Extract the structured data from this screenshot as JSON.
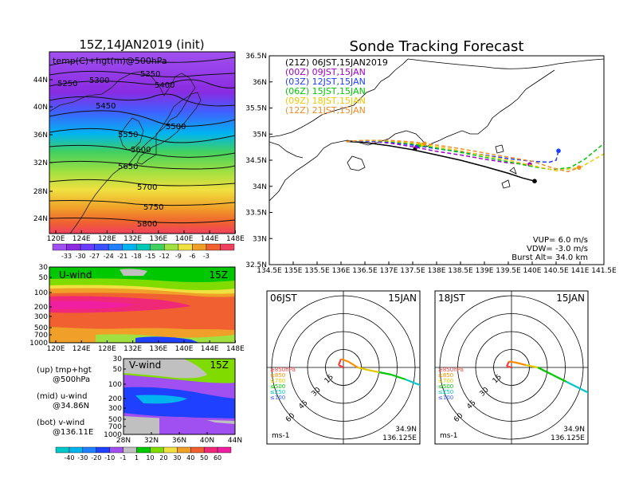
{
  "titles": {
    "left_panel": "15Z,14JAN2019 (init)",
    "right_panel": "Sonde Tracking Forecast"
  },
  "map500": {
    "label": "temp(C)+hgt(m)@500hPa",
    "lat_labels": [
      "44N",
      "40N",
      "36N",
      "32N",
      "28N",
      "24N"
    ],
    "lon_labels": [
      "120E",
      "124E",
      "128E",
      "132E",
      "136E",
      "140E",
      "144E",
      "148E"
    ],
    "contour_labels": [
      "5250",
      "5300",
      "5350",
      "5400",
      "5450",
      "5500",
      "5550",
      "5600",
      "5650",
      "5700",
      "5750",
      "5800"
    ],
    "temp_colorbar": [
      "-33",
      "-30",
      "-27",
      "-24",
      "-21",
      "-18",
      "-15",
      "-12",
      "-9",
      "-6",
      "-3"
    ]
  },
  "uwind": {
    "label": "U-wind",
    "time": "15Z",
    "p_labels": [
      "30",
      "50",
      "100",
      "200",
      "300",
      "500",
      "700",
      "1000"
    ],
    "lon_labels": [
      "120E",
      "124E",
      "128E",
      "132E",
      "136E",
      "140E",
      "144E",
      "148E"
    ]
  },
  "vwind": {
    "label": "V-wind",
    "time": "15Z",
    "p_labels": [
      "30",
      "50",
      "100",
      "200",
      "300",
      "500",
      "700",
      "1000"
    ],
    "lat_labels": [
      "28N",
      "32N",
      "36N",
      "40N",
      "44N"
    ]
  },
  "legend_text": {
    "up_1": "(up) tmp+hgt",
    "up_2": "@500hPa",
    "mid_1": "(mid) u-wind",
    "mid_2": "@34.86N",
    "bot_1": "(bot) v-wind",
    "bot_2": "@136.11E"
  },
  "wind_colorbar": [
    "-40",
    "-30",
    "-20",
    "-10",
    "-1",
    "1",
    "10",
    "20",
    "30",
    "40",
    "50",
    "60"
  ],
  "track": {
    "lat_labels": [
      "36.5N",
      "36N",
      "35.5N",
      "35N",
      "34.5N",
      "34N",
      "33.5N",
      "33N",
      "32.5N"
    ],
    "lon_labels": [
      "134.5E",
      "135E",
      "135.5E",
      "136E",
      "136.5E",
      "137E",
      "137.5E",
      "138E",
      "138.5E",
      "139E",
      "139.5E",
      "140E",
      "140.5E",
      "141E",
      "141.5E"
    ],
    "legend": [
      {
        "text": "(21Z)  06JST,15JAN2019",
        "color": "#000000"
      },
      {
        "text": "(00Z)  09JST,15JAN",
        "color": "#a000c8"
      },
      {
        "text": "(03Z)  12JST,15JAN",
        "color": "#1e3cff"
      },
      {
        "text": "(06Z)  15JST,15JAN",
        "color": "#00c800"
      },
      {
        "text": "(09Z)  18JST,15JAN",
        "color": "#f0c800"
      },
      {
        "text": "(12Z)  21JST,15JAN",
        "color": "#f08c28"
      }
    ],
    "params": [
      "VUP=  6.0  m/s",
      "VDW=  -3.0  m/s",
      "Burst Alt=  34.0  km"
    ],
    "launch": {
      "lon": 136.11,
      "lat": 34.86
    },
    "series": [
      {
        "color": "#000000",
        "dashed": false,
        "points": [
          [
            136.11,
            34.86
          ],
          [
            136.5,
            34.84
          ],
          [
            137.0,
            34.78
          ],
          [
            137.5,
            34.7
          ],
          [
            138.0,
            34.6
          ],
          [
            138.5,
            34.5
          ],
          [
            139.0,
            34.38
          ],
          [
            139.5,
            34.25
          ],
          [
            139.8,
            34.16
          ],
          [
            140.05,
            34.1
          ]
        ],
        "balloon": [
          137.55,
          34.72
        ],
        "end": [
          140.05,
          34.1
        ]
      },
      {
        "color": "#a000c8",
        "dashed": true,
        "points": [
          [
            136.11,
            34.86
          ],
          [
            136.5,
            34.87
          ],
          [
            137.0,
            34.83
          ],
          [
            137.5,
            34.76
          ],
          [
            138.0,
            34.67
          ],
          [
            138.5,
            34.6
          ],
          [
            139.0,
            34.52
          ],
          [
            139.5,
            34.45
          ],
          [
            139.95,
            34.42
          ]
        ],
        "balloon": [
          137.58,
          34.76
        ],
        "end": [
          139.95,
          34.42
        ]
      },
      {
        "color": "#1e3cff",
        "dashed": true,
        "points": [
          [
            136.11,
            34.86
          ],
          [
            136.5,
            34.87
          ],
          [
            137.0,
            34.85
          ],
          [
            137.5,
            34.79
          ],
          [
            138.0,
            34.72
          ],
          [
            138.5,
            34.66
          ],
          [
            139.0,
            34.6
          ],
          [
            139.5,
            34.53
          ],
          [
            140.0,
            34.48
          ],
          [
            140.35,
            34.46
          ],
          [
            140.5,
            34.5
          ],
          [
            140.55,
            34.68
          ]
        ],
        "balloon": [
          137.62,
          34.78
        ],
        "end": [
          140.55,
          34.68
        ]
      },
      {
        "color": "#00c800",
        "dashed": true,
        "points": [
          [
            136.11,
            34.86
          ],
          [
            136.5,
            34.88
          ],
          [
            137.0,
            34.86
          ],
          [
            137.5,
            34.81
          ],
          [
            138.0,
            34.73
          ],
          [
            138.5,
            34.65
          ],
          [
            139.0,
            34.56
          ],
          [
            139.5,
            34.47
          ],
          [
            140.0,
            34.38
          ],
          [
            140.4,
            34.32
          ],
          [
            140.8,
            34.36
          ],
          [
            141.1,
            34.52
          ],
          [
            141.5,
            34.82
          ]
        ],
        "balloon": [
          137.65,
          34.79
        ],
        "end": null
      },
      {
        "color": "#f0c800",
        "dashed": true,
        "points": [
          [
            136.11,
            34.86
          ],
          [
            136.5,
            34.88
          ],
          [
            137.0,
            34.87
          ],
          [
            137.5,
            34.83
          ],
          [
            138.0,
            34.76
          ],
          [
            138.5,
            34.68
          ],
          [
            139.0,
            34.59
          ],
          [
            139.5,
            34.5
          ],
          [
            140.0,
            34.4
          ],
          [
            140.5,
            34.3
          ],
          [
            141.0,
            34.36
          ],
          [
            141.5,
            34.62
          ]
        ],
        "balloon": [
          137.7,
          34.8
        ],
        "end": null
      },
      {
        "color": "#f08c28",
        "dashed": true,
        "points": [
          [
            136.11,
            34.86
          ],
          [
            136.5,
            34.88
          ],
          [
            137.0,
            34.88
          ],
          [
            137.5,
            34.85
          ],
          [
            138.0,
            34.79
          ],
          [
            138.5,
            34.72
          ],
          [
            139.0,
            34.64
          ],
          [
            139.5,
            34.56
          ],
          [
            140.0,
            34.48
          ],
          [
            140.4,
            34.36
          ],
          [
            140.75,
            34.28
          ],
          [
            140.98,
            34.36
          ]
        ],
        "balloon": [
          137.75,
          34.82
        ],
        "end": [
          140.98,
          34.36
        ]
      }
    ]
  },
  "hodo1": {
    "time": "06JST",
    "date": "15JAN",
    "ring_labels": [
      "15",
      "30",
      "45",
      "60"
    ],
    "levels": [
      {
        "text": "≥850hPa",
        "color": "#ff3c3c"
      },
      {
        "text": "≤850",
        "color": "#ff8c00"
      },
      {
        "text": "≤700",
        "color": "#e6c800"
      },
      {
        "text": "≤500",
        "color": "#00c800"
      },
      {
        "text": "≤250",
        "color": "#00c8c8"
      },
      {
        "text": "≤100",
        "color": "#3c64ff"
      }
    ],
    "unit": "ms-1",
    "loc_lat": "34.9N",
    "loc_lon": "136.125E",
    "curve": [
      [
        0,
        0
      ],
      [
        -4,
        2
      ],
      [
        -2,
        7
      ],
      [
        4,
        5
      ],
      [
        12,
        0
      ],
      [
        20,
        -2
      ],
      [
        30,
        -4
      ],
      [
        40,
        -6
      ],
      [
        52,
        -10
      ],
      [
        62,
        -14
      ],
      [
        70,
        -16
      ],
      [
        72,
        -18
      ]
    ]
  },
  "hodo2": {
    "time": "18JST",
    "date": "15JAN",
    "ring_labels": [
      "15",
      "30",
      "45",
      "60"
    ],
    "levels": [
      {
        "text": "≥850hPa",
        "color": "#ff3c3c"
      },
      {
        "text": "≤850",
        "color": "#ff8c00"
      },
      {
        "text": "≤700",
        "color": "#e6c800"
      },
      {
        "text": "≤500",
        "color": "#00c800"
      },
      {
        "text": "≤250",
        "color": "#00c8c8"
      },
      {
        "text": "≤100",
        "color": "#3c64ff"
      }
    ],
    "unit": "ms-1",
    "loc_lat": "34.9N",
    "loc_lon": "136.125E",
    "curve": [
      [
        0,
        0
      ],
      [
        -4,
        1
      ],
      [
        -2,
        5
      ],
      [
        4,
        4
      ],
      [
        12,
        2
      ],
      [
        22,
        0
      ],
      [
        34,
        -6
      ],
      [
        46,
        -12
      ],
      [
        58,
        -18
      ],
      [
        70,
        -24
      ],
      [
        78,
        -28
      ]
    ]
  }
}
